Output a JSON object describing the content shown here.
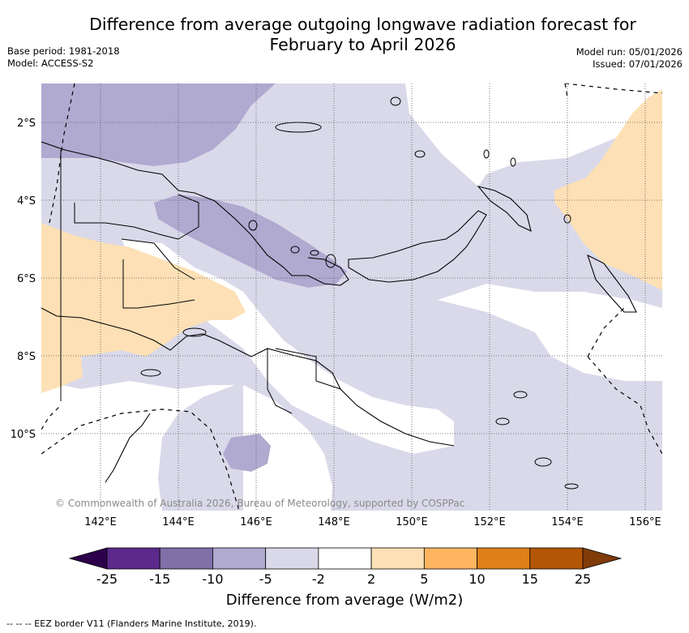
{
  "header": {
    "title_line1": "Difference from average outgoing longwave radiation forecast for",
    "title_line2": "February to April 2026",
    "base_period": "Base period: 1981-2018",
    "model": "Model: ACCESS-S2",
    "model_run": "Model run: 05/01/2026",
    "issued": "Issued: 07/01/2026"
  },
  "map": {
    "latitude_labels": [
      "2°S",
      "4°S",
      "6°S",
      "8°S",
      "10°S"
    ],
    "longitude_labels": [
      "142°E",
      "144°E",
      "146°E",
      "148°E",
      "150°E",
      "152°E",
      "154°E",
      "156°E"
    ],
    "copyright": "© Commonwealth of Australia 2026, Bureau of Meteorology, supported by COSPPac",
    "colors": {
      "lt_minus15": "#5b2a8c",
      "minus15_minus10": "#8070a8",
      "minus10_minus5": "#b0a9d0",
      "minus5_minus2": "#d9d9ea",
      "minus2_2": "#ffffff",
      "p2_5": "#fde0b5",
      "p5_10": "#fdb560",
      "p10_15": "#e08018",
      "p15_25": "#b35606",
      "gt25": "#7f3b08",
      "land_outline": "#000000",
      "eez_border": "#000000"
    }
  },
  "colorbar": {
    "labels": [
      "-25",
      "-15",
      "-10",
      "-5",
      "-2",
      "2",
      "5",
      "10",
      "15",
      "25"
    ],
    "title": "Difference from average (W/m2)"
  },
  "footer": {
    "eez_legend": "--  --  -- EEZ border V11 (Flanders Marine Institute, 2019)."
  }
}
